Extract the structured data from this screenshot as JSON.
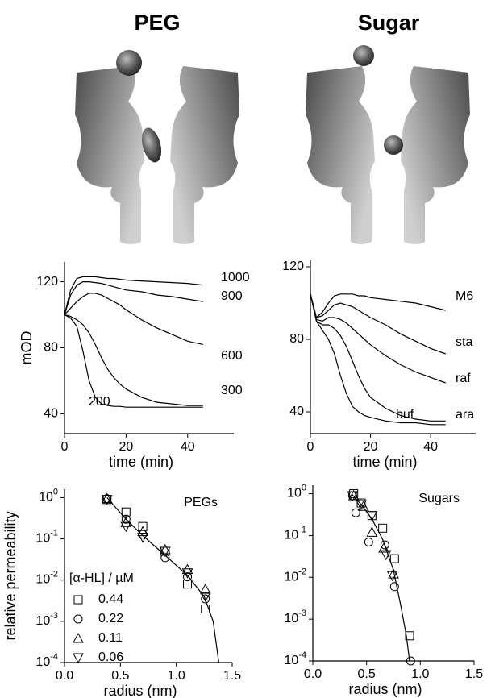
{
  "titles": [
    "PEG",
    "Sugar"
  ],
  "chart_data": [
    {
      "type": "line",
      "ylabel": "mOD",
      "xlabel": "time (min)",
      "xlim": [
        0,
        55
      ],
      "ylim": [
        28,
        132
      ],
      "xticks": [
        0,
        20,
        40
      ],
      "yticks": [
        40,
        80,
        120
      ],
      "x": [
        0,
        2,
        4,
        6,
        8,
        10,
        12,
        14,
        16,
        18,
        20,
        25,
        30,
        35,
        40,
        45
      ],
      "series": [
        {
          "name": "1000",
          "color": "#000000",
          "values": [
            100,
            115,
            122,
            123,
            123,
            123,
            122.5,
            122,
            122,
            121.5,
            121,
            120.5,
            120,
            119.5,
            119,
            118
          ]
        },
        {
          "name": "900",
          "color": "#000000",
          "values": [
            100,
            112,
            118,
            120,
            120,
            119.5,
            119,
            118,
            117,
            116,
            115,
            114,
            112,
            111,
            109.5,
            108
          ]
        },
        {
          "name": "600",
          "color": "#000000",
          "values": [
            100,
            104,
            108,
            111,
            113,
            113,
            112,
            110,
            108,
            106,
            103,
            97,
            92,
            88,
            84,
            82
          ]
        },
        {
          "name": "300",
          "color": "#000000",
          "values": [
            100,
            99,
            97,
            94,
            89,
            82,
            74,
            67,
            62,
            58,
            55,
            50,
            47,
            46,
            45,
            45
          ]
        },
        {
          "name": "200",
          "color": "#000000",
          "values": [
            100,
            98,
            93,
            78,
            60,
            50,
            46,
            45,
            44.5,
            44.5,
            44,
            44,
            44,
            44,
            44,
            44
          ]
        }
      ]
    },
    {
      "type": "line",
      "xlabel": "time (min)",
      "xlim": [
        0,
        55
      ],
      "ylim": [
        28,
        124
      ],
      "xticks": [
        0,
        20,
        40
      ],
      "yticks": [
        40,
        80,
        120
      ],
      "x": [
        0,
        2,
        4,
        6,
        8,
        10,
        12,
        14,
        16,
        18,
        20,
        25,
        30,
        35,
        40,
        45
      ],
      "series": [
        {
          "name": "M6",
          "color": "#000000",
          "values": [
            105,
            92,
            95,
            100,
            104,
            105,
            105,
            105,
            104,
            104,
            103,
            102,
            101,
            100,
            98,
            96
          ]
        },
        {
          "name": "sta",
          "color": "#000000",
          "values": [
            105,
            92,
            93,
            96,
            99,
            100,
            99,
            98,
            96,
            94,
            92,
            88,
            83,
            79,
            75,
            72
          ]
        },
        {
          "name": "raf",
          "color": "#000000",
          "values": [
            105,
            91,
            90,
            92,
            92,
            91,
            89,
            86,
            83,
            80,
            77,
            71,
            66,
            62,
            59,
            56
          ]
        },
        {
          "name": "ara",
          "color": "#000000",
          "values": [
            105,
            90,
            88,
            88,
            86,
            82,
            76,
            68,
            60,
            53,
            48,
            42,
            38,
            36,
            35,
            35
          ]
        },
        {
          "name": "buf",
          "color": "#000000",
          "values": [
            105,
            90,
            85,
            80,
            72,
            60,
            50,
            43,
            40,
            38,
            37,
            35,
            34,
            34,
            33,
            33
          ]
        }
      ]
    },
    {
      "type": "scatter",
      "annotation": "PEGs",
      "ylabel": "relative permeability",
      "xlabel": "radius (nm)",
      "log_y": true,
      "legend_title": "[α-HL] / µM",
      "xlim": [
        0,
        1.5
      ],
      "ylim": [
        0.0001,
        1.6
      ],
      "xticks": [
        {
          "value": 0,
          "label": "0.0"
        },
        0.5,
        {
          "value": 1,
          "label": "1.0"
        },
        1.5
      ],
      "yticks": [
        {
          "value": 1,
          "label": "10^0"
        },
        {
          "value": 0.1,
          "label": "10^-1"
        },
        {
          "value": 0.01,
          "label": "10^-2"
        },
        {
          "value": 0.001,
          "label": "10^-3"
        },
        {
          "value": 0.0001,
          "label": "10^-4"
        }
      ],
      "series": [
        {
          "name": "0.44",
          "marker": "square",
          "color": "#000000",
          "x": [
            0.38,
            0.55,
            0.7,
            0.9,
            1.1,
            1.26
          ],
          "values": [
            0.9,
            0.45,
            0.2,
            0.05,
            0.008,
            0.002
          ]
        },
        {
          "name": "0.22",
          "marker": "circle",
          "color": "#000000",
          "x": [
            0.38,
            0.55,
            0.7,
            0.9,
            1.1,
            1.26
          ],
          "values": [
            0.95,
            0.3,
            0.13,
            0.035,
            0.012,
            0.0035
          ]
        },
        {
          "name": "0.11",
          "marker": "triangle-up",
          "color": "#000000",
          "x": [
            0.38,
            0.55,
            0.7,
            0.9,
            1.1,
            1.26
          ],
          "values": [
            0.95,
            0.25,
            0.15,
            0.055,
            0.018,
            0.006
          ]
        },
        {
          "name": "0.06",
          "marker": "triangle-down",
          "color": "#000000",
          "x": [
            0.38,
            0.55,
            0.7,
            0.9,
            1.1,
            1.26
          ],
          "values": [
            0.9,
            0.2,
            0.11,
            0.05,
            0.015,
            0.004
          ]
        }
      ],
      "curve": {
        "color": "#000000",
        "x": [
          0.38,
          0.55,
          0.7,
          0.9,
          1.1,
          1.25,
          1.33,
          1.38
        ],
        "values": [
          1,
          0.3,
          0.12,
          0.04,
          0.013,
          0.004,
          0.001,
          0.0001
        ]
      }
    },
    {
      "type": "scatter",
      "annotation": "Sugars",
      "xlabel": "radius (nm)",
      "log_y": true,
      "xlim": [
        0,
        1.5
      ],
      "ylim": [
        0.0001,
        1.6
      ],
      "xticks": [
        {
          "value": 0,
          "label": "0.0"
        },
        0.5,
        {
          "value": 1,
          "label": "1.0"
        },
        1.5
      ],
      "yticks": [
        {
          "value": 1,
          "label": "10^0"
        },
        {
          "value": 0.1,
          "label": "10^-1"
        },
        {
          "value": 0.01,
          "label": "10^-2"
        },
        {
          "value": 0.001,
          "label": "10^-3"
        },
        {
          "value": 0.0001,
          "label": "10^-4"
        }
      ],
      "series": [
        {
          "marker": "square",
          "color": "#000000",
          "x": [
            0.38,
            0.45,
            0.55,
            0.65,
            0.76,
            0.9
          ],
          "values": [
            1,
            0.6,
            0.3,
            0.15,
            0.028,
            0.0004
          ]
        },
        {
          "marker": "circle",
          "color": "#000000",
          "x": [
            0.37,
            0.4,
            0.52,
            0.67,
            0.76,
            0.91
          ],
          "values": [
            0.9,
            0.35,
            0.07,
            0.06,
            0.006,
            0.0001
          ]
        },
        {
          "marker": "triangle-up",
          "color": "#000000",
          "x": [
            0.38,
            0.47,
            0.55,
            0.66,
            0.75
          ],
          "values": [
            0.9,
            0.5,
            0.12,
            0.05,
            0.012
          ]
        },
        {
          "marker": "triangle-down",
          "color": "#000000",
          "x": [
            0.37,
            0.45,
            0.55,
            0.68,
            0.74
          ],
          "values": [
            0.9,
            0.55,
            0.3,
            0.035,
            0.011
          ]
        }
      ],
      "curve": {
        "color": "#000000",
        "x": [
          0.36,
          0.45,
          0.55,
          0.65,
          0.75,
          0.82,
          0.87,
          0.9
        ],
        "values": [
          1,
          0.55,
          0.25,
          0.08,
          0.015,
          0.002,
          0.0004,
          0.0001
        ]
      }
    }
  ]
}
